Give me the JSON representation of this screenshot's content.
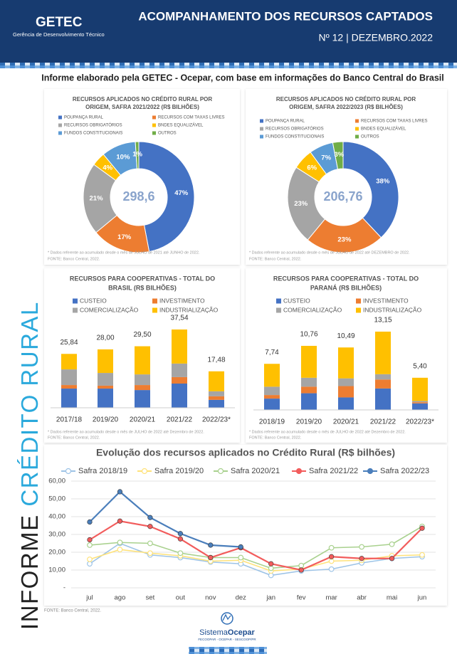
{
  "header": {
    "brand": "GETEC",
    "brand_subtitle": "Gerência de Desenvolvimento Técnico",
    "title": "ACOMPANHAMENTO DOS RECURSOS CAPTADOS",
    "issue": "Nº 12 | DEZEMBRO.2022"
  },
  "subtitle": "Informe elaborado pela GETEC - Ocepar, com base em informações do Banco Central do Brasil",
  "side_title": {
    "first": "INFORME ",
    "second": "CRÉDITO RURAL"
  },
  "footer": {
    "source": "FONTE: Banco Central, 2022.",
    "logo_first": "Sistema",
    "logo_second": "Ocepar",
    "logo_caption": "FECOOPAR - OCEPAR - SESCOOP/PR"
  },
  "chart_data": [
    {
      "type": "pie",
      "title": [
        "RECURSOS APLICADOS NO CRÉDITO RURAL POR",
        "ORIGEM, SAFRA 2021/2022 (R$ BILHÕES)"
      ],
      "center_label": "298,6",
      "categories": [
        "POUPANÇA RURAL",
        "RECURSOS COM TAXAS LIVRES",
        "RECURSOS OBRIGATÓRIOS",
        "BNDES EQUALIZÁVEL",
        "FUNDOS CONSTITUCIONAIS",
        "OUTROS"
      ],
      "values": [
        47,
        17,
        21,
        4,
        10,
        1
      ],
      "value_labels": [
        "47%",
        "17%",
        "21%",
        "4%",
        "10%",
        "1%"
      ],
      "colors": [
        "#4472c4",
        "#ed7d31",
        "#a5a5a5",
        "#ffc000",
        "#5b9bd5",
        "#70ad47"
      ],
      "notes": [
        "* Dados referente ao acumulado desde o mês de JULHO de 2021 até JUNHO de 2022.",
        "FONTE: Banco Central, 2022."
      ]
    },
    {
      "type": "pie",
      "title": [
        "RECURSOS APLICADOS NO CRÉDITO RURAL POR",
        "ORIGEM, SAFRA 2022/2023 (R$ BILHÕES)"
      ],
      "center_label": "206,76",
      "categories": [
        "POUPANÇA RURAL",
        "RECURSOS COM TAXAS LIVRES",
        "RECURSOS OBRIGATÓRIOS",
        "BNDES EQUALIZÁVEL",
        "FUNDOS CONSTITUCIONAIS",
        "OUTROS"
      ],
      "values": [
        38,
        23,
        23,
        6,
        7,
        3
      ],
      "value_labels": [
        "38%",
        "23%",
        "23%",
        "6%",
        "7%",
        "3%"
      ],
      "colors": [
        "#4472c4",
        "#ed7d31",
        "#a5a5a5",
        "#ffc000",
        "#5b9bd5",
        "#70ad47"
      ],
      "notes": [
        "* Dados referente ao acumulado desde o mês de JULHO de 2022 até DEZEMBRO de 2022.",
        "FONTE: Banco Central, 2022."
      ]
    },
    {
      "type": "bar",
      "stacked": true,
      "title": [
        "RECURSOS PARA COOPERATIVAS - TOTAL DO",
        "BRASIL (R$ BILHÕES)"
      ],
      "categories": [
        "2017/18",
        "2019/20",
        "2020/21",
        "2021/22",
        "2022/23*"
      ],
      "series": [
        {
          "name": "CUSTEIO",
          "color": "#4472c4",
          "values": [
            9.2,
            9.2,
            8.5,
            11.6,
            3.8
          ]
        },
        {
          "name": "INVESTIMENTO",
          "color": "#ed7d31",
          "values": [
            1.7,
            1.4,
            2.4,
            3.1,
            1.7
          ]
        },
        {
          "name": "COMERCIALIZAÇÃO",
          "color": "#a5a5a5",
          "values": [
            7.5,
            6.1,
            5.1,
            6.5,
            2.4
          ]
        },
        {
          "name": "INDUSTRIALIZAÇÃO",
          "color": "#ffc000",
          "values": [
            7.44,
            11.3,
            13.5,
            16.34,
            9.58
          ]
        }
      ],
      "totals": [
        25.84,
        28.0,
        29.5,
        37.54,
        17.48
      ],
      "total_labels": [
        "25,84",
        "28,00",
        "29,50",
        "37,54",
        "17,48"
      ],
      "notes": [
        "* Dados referente ao acumulado desde o mês de JULHO de 2022 até Dezembro de 2022.",
        "FONTE: Banco Central, 2022."
      ]
    },
    {
      "type": "bar",
      "stacked": true,
      "title": [
        "RECURSOS PARA COOPERATIVAS - TOTAL DO",
        "PARANÁ (R$ BILHÕES)"
      ],
      "categories": [
        "2018/19",
        "2019/20",
        "2020/21",
        "2021/22",
        "2022/23*"
      ],
      "series": [
        {
          "name": "CUSTEIO",
          "color": "#4472c4",
          "values": [
            1.9,
            2.8,
            2.1,
            3.6,
            1.1
          ]
        },
        {
          "name": "INVESTIMENTO",
          "color": "#ed7d31",
          "values": [
            0.6,
            1.1,
            1.9,
            1.5,
            0.2
          ]
        },
        {
          "name": "COMERCIALIZAÇÃO",
          "color": "#a5a5a5",
          "values": [
            1.4,
            1.5,
            1.3,
            0.9,
            0.2
          ]
        },
        {
          "name": "INDUSTRIALIZAÇÃO",
          "color": "#ffc000",
          "values": [
            3.84,
            5.36,
            5.19,
            7.15,
            3.9
          ]
        }
      ],
      "totals": [
        7.74,
        10.76,
        10.49,
        13.15,
        5.4
      ],
      "total_labels": [
        "7,74",
        "10,76",
        "10,49",
        "13,15",
        "5,40"
      ],
      "notes": [
        "* Dados referente ao acumulado desde o mês de JULHO de 2022 até  Dezembro de 2022.",
        "FONTE: Banco Central, 2022."
      ]
    },
    {
      "type": "line",
      "title": "Evolução dos recursos aplicados no Crédito Rural (R$ bilhões)",
      "categories": [
        "jul",
        "ago",
        "set",
        "out",
        "nov",
        "dez",
        "jan",
        "fev",
        "mar",
        "abr",
        "mai",
        "jun"
      ],
      "series": [
        {
          "name": "Safra 2018/19",
          "color": "#9dc3e6",
          "filled": false,
          "values": [
            13.5,
            25,
            18.5,
            17,
            14.5,
            13.5,
            7,
            9.5,
            10.5,
            14,
            16.5,
            17.5
          ]
        },
        {
          "name": "Safra 2019/20",
          "color": "#ffe27a",
          "filled": false,
          "values": [
            16,
            21.5,
            19.5,
            18,
            15,
            15.5,
            9.5,
            10.5,
            15,
            15.5,
            18,
            18.5
          ]
        },
        {
          "name": "Safra 2020/21",
          "color": "#a9d18e",
          "filled": false,
          "values": [
            24,
            25.5,
            25,
            19.5,
            17,
            17,
            11,
            12.5,
            22.5,
            23,
            24.5,
            34.5
          ]
        },
        {
          "name": "Safra 2021/22",
          "color": "#f25c5c",
          "filled": true,
          "values": [
            27,
            37.5,
            34.5,
            27.5,
            17,
            22.5,
            13.5,
            10,
            17.5,
            16.5,
            16.5,
            33.5
          ]
        },
        {
          "name": "Safra 2022/23",
          "color": "#4a7ebb",
          "filled": true,
          "values": [
            37,
            54,
            39.5,
            30.5,
            24,
            23,
            null,
            null,
            null,
            null,
            null,
            null
          ]
        }
      ],
      "ylim": [
        0,
        60
      ],
      "yticks": [
        {
          "value": 0,
          "label": "-"
        },
        {
          "value": 10,
          "label": "10,00"
        },
        {
          "value": 20,
          "label": "20,00"
        },
        {
          "value": 30,
          "label": "30,00"
        },
        {
          "value": 40,
          "label": "40,00"
        },
        {
          "value": 50,
          "label": "50,00"
        },
        {
          "value": 60,
          "label": "60,00"
        }
      ],
      "grid": true
    }
  ]
}
